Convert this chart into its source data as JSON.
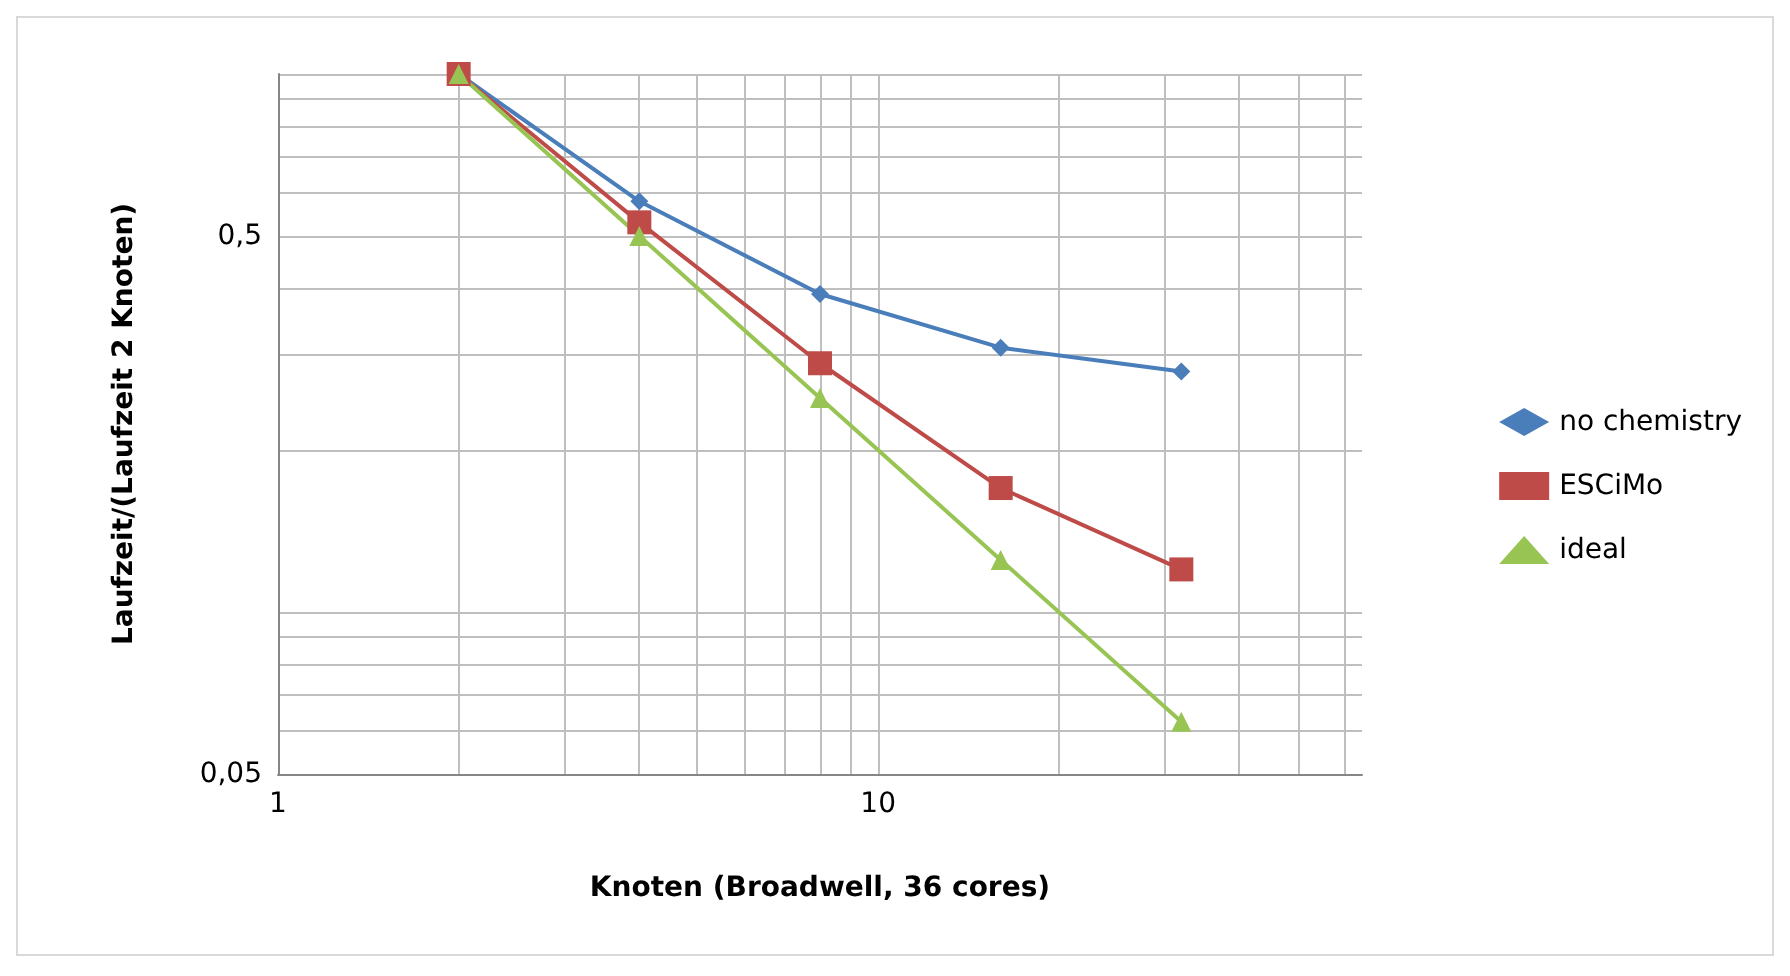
{
  "chart_data": {
    "type": "line",
    "xlabel": "Knoten (Broadwell, 36 cores)",
    "ylabel": "Laufzeit/(Laufzeit 2 Knoten)",
    "log": "xy",
    "xlim": [
      1,
      64
    ],
    "ylim": [
      0.05,
      1
    ],
    "xticks": [
      1,
      {
        "value": 2,
        "label": null
      },
      {
        "value": 3,
        "label": null
      },
      {
        "value": 4,
        "label": null
      },
      {
        "value": 5,
        "label": null
      },
      {
        "value": 6,
        "label": null
      },
      {
        "value": 7,
        "label": null
      },
      {
        "value": 8,
        "label": null
      },
      {
        "value": 9,
        "label": null
      },
      10,
      {
        "value": 20,
        "label": null
      },
      {
        "value": 30,
        "label": null
      },
      {
        "value": 40,
        "label": null
      },
      {
        "value": 50,
        "label": null
      },
      {
        "value": 60,
        "label": null
      }
    ],
    "yticks": [
      {
        "value": 0.05,
        "label": "0,05"
      },
      {
        "value": 0.06,
        "label": null
      },
      {
        "value": 0.07,
        "label": null
      },
      {
        "value": 0.08,
        "label": null
      },
      {
        "value": 0.09,
        "label": null
      },
      {
        "value": 0.1,
        "label": null
      },
      {
        "value": 0.2,
        "label": null
      },
      {
        "value": 0.3,
        "label": null
      },
      {
        "value": 0.4,
        "label": null
      },
      {
        "value": 0.5,
        "label": "0,5"
      },
      {
        "value": 0.6,
        "label": null
      },
      {
        "value": 0.7,
        "label": null
      },
      {
        "value": 0.8,
        "label": null
      },
      {
        "value": 0.9,
        "label": null
      },
      {
        "value": 1,
        "label": null
      }
    ],
    "grid": true,
    "legend": "right",
    "line_style": "solid",
    "series": [
      {
        "name": "no chemistry",
        "color": "#4a7ebb",
        "marker": "diamond",
        "x": [
          2,
          4,
          8,
          16,
          32
        ],
        "values": [
          1,
          0.58,
          0.39,
          0.31,
          0.28
        ]
      },
      {
        "name": "ESCiMo",
        "color": "#be4b48",
        "marker": "square",
        "x": [
          2,
          4,
          8,
          16,
          32
        ],
        "values": [
          1,
          0.53,
          0.29,
          0.17,
          0.12
        ]
      },
      {
        "name": "ideal",
        "color": "#98c454",
        "marker": "triangle",
        "x": [
          2,
          4,
          8,
          16,
          32
        ],
        "values": [
          1,
          0.5,
          0.25,
          0.125,
          0.0625
        ]
      }
    ]
  }
}
